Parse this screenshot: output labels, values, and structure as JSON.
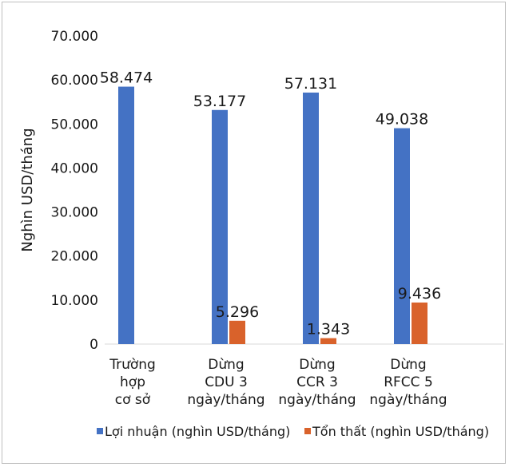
{
  "chart_data": {
    "type": "bar",
    "ylabel": "Nghìn USD/tháng",
    "ylim": [
      0,
      70000
    ],
    "yticks": [
      0,
      10000,
      20000,
      30000,
      40000,
      50000,
      60000,
      70000
    ],
    "ytick_labels": [
      "0",
      "10.000",
      "20.000",
      "30.000",
      "40.000",
      "50.000",
      "60.000",
      "70.000"
    ],
    "grid": false,
    "legend_position": "bottom",
    "categories": [
      [
        "Trường",
        "hợp",
        "cơ sở"
      ],
      [
        "Dừng",
        "CDU 3",
        "ngày/tháng"
      ],
      [
        "Dừng",
        "CCR 3",
        "ngày/tháng"
      ],
      [
        "Dừng",
        "RFCC 5",
        "ngày/tháng"
      ]
    ],
    "series": [
      {
        "name": "Lợi nhuận (nghìn USD/tháng)",
        "color": "#4472c4",
        "values": [
          58474,
          53177,
          57131,
          49038
        ],
        "labels": [
          "58.474",
          "53.177",
          "57.131",
          "49.038"
        ]
      },
      {
        "name": "Tổn thất (nghìn USD/tháng)",
        "color": "#d9622b",
        "values": [
          0,
          5296,
          1343,
          9436
        ],
        "labels": [
          "",
          "5.296",
          "1.343",
          "9.436"
        ]
      }
    ]
  }
}
